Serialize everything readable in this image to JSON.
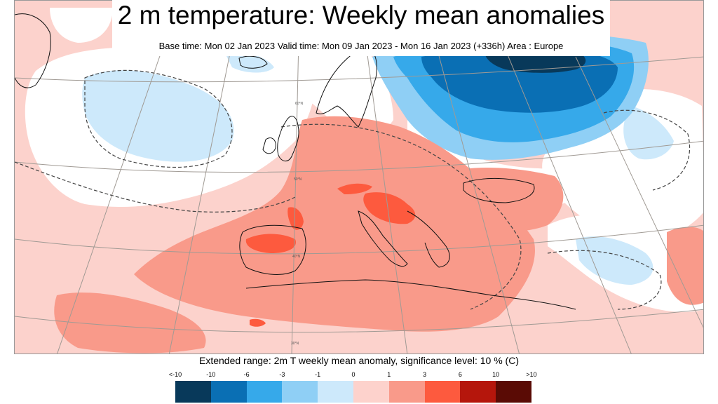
{
  "header": {
    "title": "2 m temperature: Weekly mean anomalies",
    "subtitle": "Base time: Mon 02 Jan 2023 Valid time: Mon 09 Jan 2023 - Mon 16 Jan 2023 (+336h) Area : Europe"
  },
  "map": {
    "grid_labels": [
      "60°N",
      "50°N",
      "40°N",
      "30°N"
    ]
  },
  "legend": {
    "caption": "Extended range: 2m T weekly mean anomaly, significance level: 10 % (C)",
    "ticks": [
      "<-10",
      "-10",
      "-6",
      "-3",
      "-1",
      "0",
      "1",
      "3",
      "6",
      "10",
      ">10"
    ],
    "colors": [
      "#08395a",
      "#0a6fb4",
      "#36a9ea",
      "#8fcff5",
      "#cde9fb",
      "#fdd2cc",
      "#f99a8a",
      "#fd5a3e",
      "#b5160c",
      "#5a0b05"
    ]
  }
}
